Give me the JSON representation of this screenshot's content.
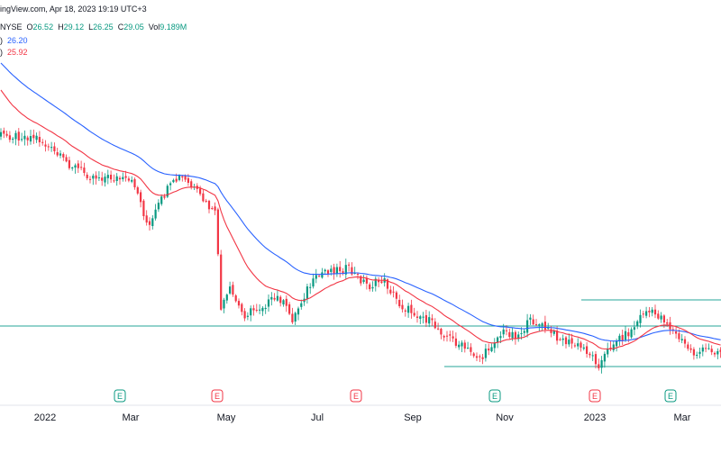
{
  "header": {
    "line1": "ingView.com, Apr 18, 2023 19:19 UTC+3",
    "line2": {
      "exchange": "NYSE",
      "o_label": "O",
      "o": "26.52",
      "h_label": "H",
      "h": "29.12",
      "l_label": "L",
      "l": "26.25",
      "c_label": "C",
      "c": "29.05",
      "vol_label": "Vol",
      "vol": "9.189M"
    },
    "ma1": {
      "prefix": ")",
      "value": "26.20",
      "color": "#2962ff"
    },
    "ma2": {
      "prefix": ")",
      "value": "25.92",
      "color": "#e91e63"
    }
  },
  "chart_data": {
    "type": "candlestick",
    "x_axis_labels": [
      "2022",
      "Mar",
      "May",
      "Jul",
      "Sep",
      "Nov",
      "2023",
      "Mar"
    ],
    "earnings_markers": [
      {
        "label": "E",
        "type": "positive"
      },
      {
        "label": "E",
        "type": "negative"
      },
      {
        "label": "E",
        "type": "negative"
      },
      {
        "label": "E",
        "type": "positive"
      },
      {
        "label": "E",
        "type": "negative"
      },
      {
        "label": "E",
        "type": "positive"
      }
    ],
    "colors": {
      "up": "#089981",
      "down": "#f23645",
      "ma_fast": "#f23645",
      "ma_slow": "#2962ff",
      "hline": "#26a69a"
    },
    "moving_averages": [
      {
        "value": "26.20",
        "color": "#2962ff"
      },
      {
        "value": "25.92",
        "color": "#f23645"
      }
    ],
    "horizontal_lines": 3,
    "grid": false
  }
}
